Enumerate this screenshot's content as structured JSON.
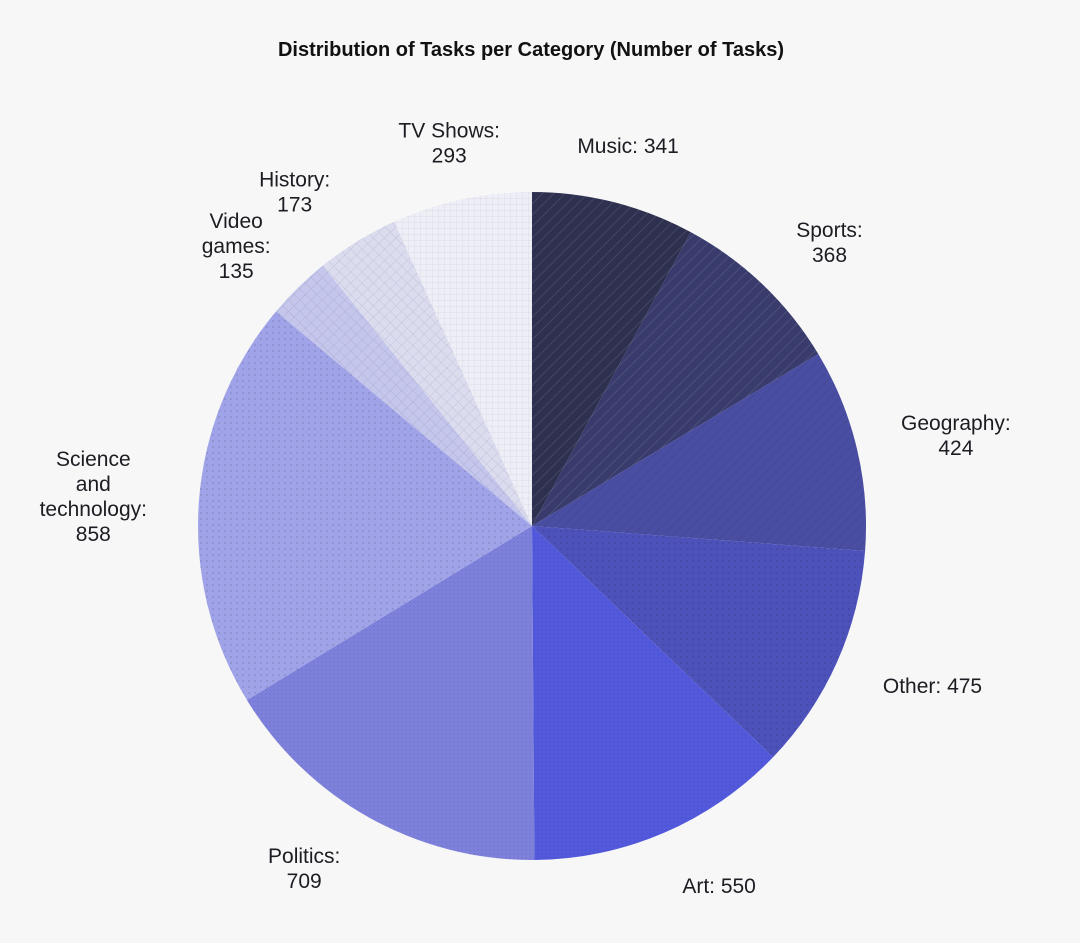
{
  "chart_data": {
    "type": "pie",
    "title": "Distribution of Tasks per Category (Number of Tasks)",
    "start_angle_deg": 90,
    "direction": "clockwise",
    "legend": "none",
    "slices": [
      {
        "name": "Music",
        "value": 341,
        "label_lines": [
          "Music: 341"
        ],
        "color": "#2e3050",
        "pattern": "dark-hatch"
      },
      {
        "name": "Sports",
        "value": 368,
        "label_lines": [
          "Sports:",
          "368"
        ],
        "color": "#383b6b",
        "pattern": "dark-hatch"
      },
      {
        "name": "Geography",
        "value": 424,
        "label_lines": [
          "Geography:",
          "424"
        ],
        "color": "#4a4ea2",
        "pattern": "hatch"
      },
      {
        "name": "Other",
        "value": 475,
        "label_lines": [
          "Other: 475"
        ],
        "color": "#4d52bb",
        "pattern": "dots"
      },
      {
        "name": "Art",
        "value": 550,
        "label_lines": [
          "Art: 550"
        ],
        "color": "#5359dc",
        "pattern": "fine-dots"
      },
      {
        "name": "Politics",
        "value": 709,
        "label_lines": [
          "Politics:",
          "709"
        ],
        "color": "#7d81db",
        "pattern": "fine-dots"
      },
      {
        "name": "Science and technology",
        "value": 858,
        "label_lines": [
          "Science",
          "and",
          "technology:",
          "858"
        ],
        "color": "#a0a3e8",
        "pattern": "dots"
      },
      {
        "name": "Video games",
        "value": 135,
        "label_lines": [
          "Video",
          "games:",
          "135"
        ],
        "color": "#c5c6eb",
        "pattern": "grid"
      },
      {
        "name": "History",
        "value": 173,
        "label_lines": [
          "History:",
          "173"
        ],
        "color": "#dcdcef",
        "pattern": "grid"
      },
      {
        "name": "TV Shows",
        "value": 293,
        "label_lines": [
          "TV Shows:",
          "293"
        ],
        "color": "#eeeef6",
        "pattern": "fine-grid"
      }
    ]
  }
}
